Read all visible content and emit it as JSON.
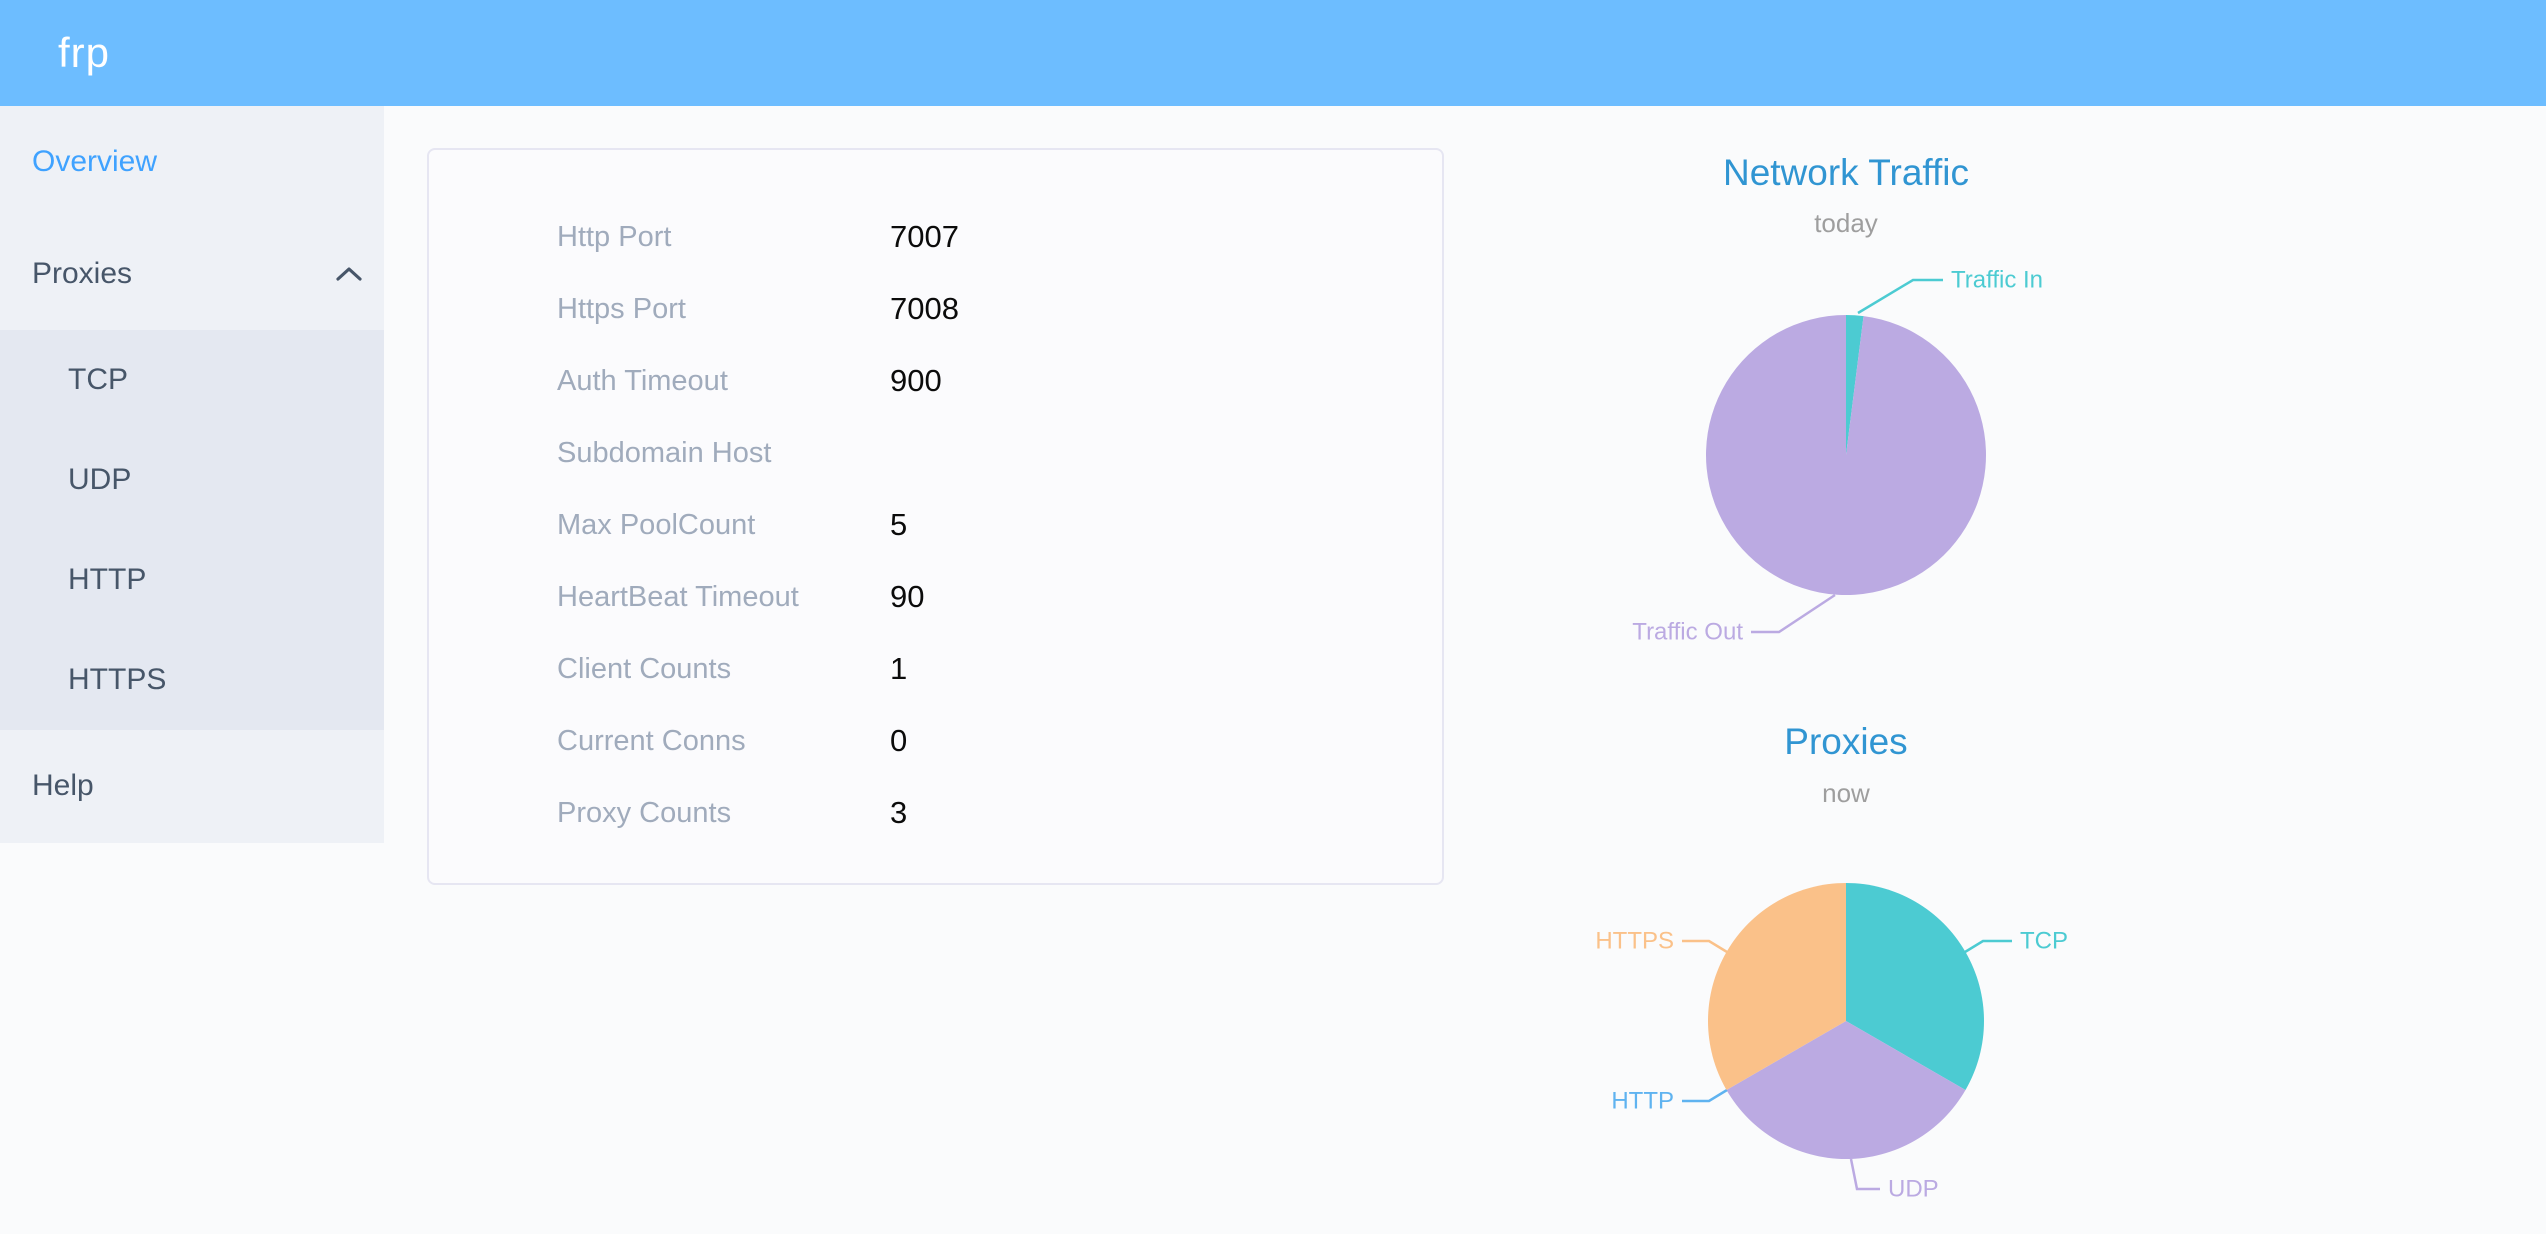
{
  "header": {
    "logo": "frp"
  },
  "sidebar": {
    "items": [
      {
        "label": "Overview",
        "active": true
      },
      {
        "label": "Proxies",
        "expanded": true,
        "children": [
          "TCP",
          "UDP",
          "HTTP",
          "HTTPS"
        ]
      },
      {
        "label": "Help"
      }
    ]
  },
  "server_info": {
    "rows": [
      {
        "label": "Http Port",
        "value": "7007"
      },
      {
        "label": "Https Port",
        "value": "7008"
      },
      {
        "label": "Auth Timeout",
        "value": "900"
      },
      {
        "label": "Subdomain Host",
        "value": ""
      },
      {
        "label": "Max PoolCount",
        "value": "5"
      },
      {
        "label": "HeartBeat Timeout",
        "value": "90"
      },
      {
        "label": "Client Counts",
        "value": "1"
      },
      {
        "label": "Current Conns",
        "value": "0"
      },
      {
        "label": "Proxy Counts",
        "value": "3"
      }
    ]
  },
  "chart_data": [
    {
      "type": "pie",
      "id": "traffic",
      "title": "Network Traffic",
      "subtitle": "today",
      "legend_position": "callout-labels",
      "slices": [
        {
          "label": "Traffic In",
          "value": 2,
          "color": "#4ccbd2"
        },
        {
          "label": "Traffic Out",
          "value": 98,
          "color": "#bbaae2"
        }
      ]
    },
    {
      "type": "pie",
      "id": "proxies",
      "title": "Proxies",
      "subtitle": "now",
      "legend_position": "callout-labels",
      "slices": [
        {
          "label": "TCP",
          "value": 1,
          "color": "#4ccbd2"
        },
        {
          "label": "UDP",
          "value": 1,
          "color": "#bbaae2"
        },
        {
          "label": "HTTP",
          "value": 0,
          "color": "#5fb3f0"
        },
        {
          "label": "HTTPS",
          "value": 1,
          "color": "#fac189"
        }
      ]
    }
  ],
  "colors": {
    "header_bg": "#6dbdff",
    "logo_text": "#ffffff",
    "menu_active": "#3fa2ff",
    "menu_text": "#475669",
    "sidebar_bg": "#eef1f6",
    "submenu_bg": "#e4e8f1",
    "page_bg": "#fafbfc",
    "card_border": "#e6e6f2",
    "info_label": "#a0abbc",
    "info_value": "#0b0b0b",
    "chart_title": "#3095d2",
    "chart_subtitle": "#9e9e9e",
    "teal": "#4ccbd2",
    "purple": "#bbaae2",
    "blue": "#5fb3f0",
    "orange": "#fac189"
  }
}
